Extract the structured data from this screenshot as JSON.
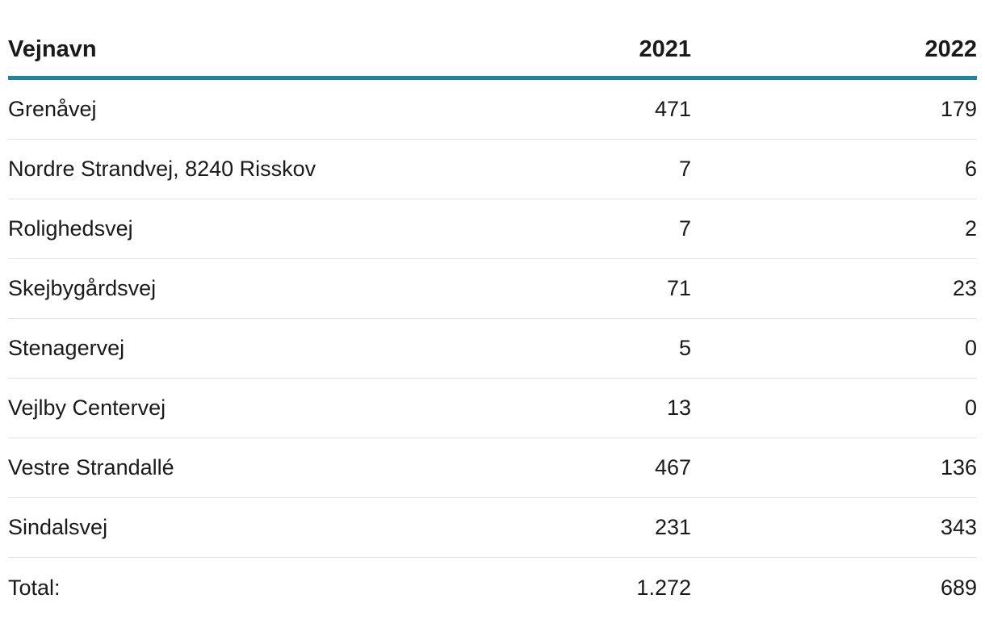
{
  "table": {
    "columns": [
      "Vejnavn",
      "2021",
      "2022"
    ],
    "rows": [
      [
        "Grenåvej",
        "471",
        "179"
      ],
      [
        "Nordre Strandvej, 8240 Risskov",
        "7",
        "6"
      ],
      [
        "Rolighedsvej",
        "7",
        "2"
      ],
      [
        "Skejbygårdsvej",
        "71",
        "23"
      ],
      [
        "Stenagervej",
        "5",
        "0"
      ],
      [
        "Vejlby Centervej",
        "13",
        "0"
      ],
      [
        "Vestre Strandallé",
        "467",
        "136"
      ],
      [
        "Sindalsvej",
        "231",
        "343"
      ]
    ],
    "total": [
      "Total:",
      "1.272",
      "689"
    ],
    "accent_color": "#24829a"
  }
}
